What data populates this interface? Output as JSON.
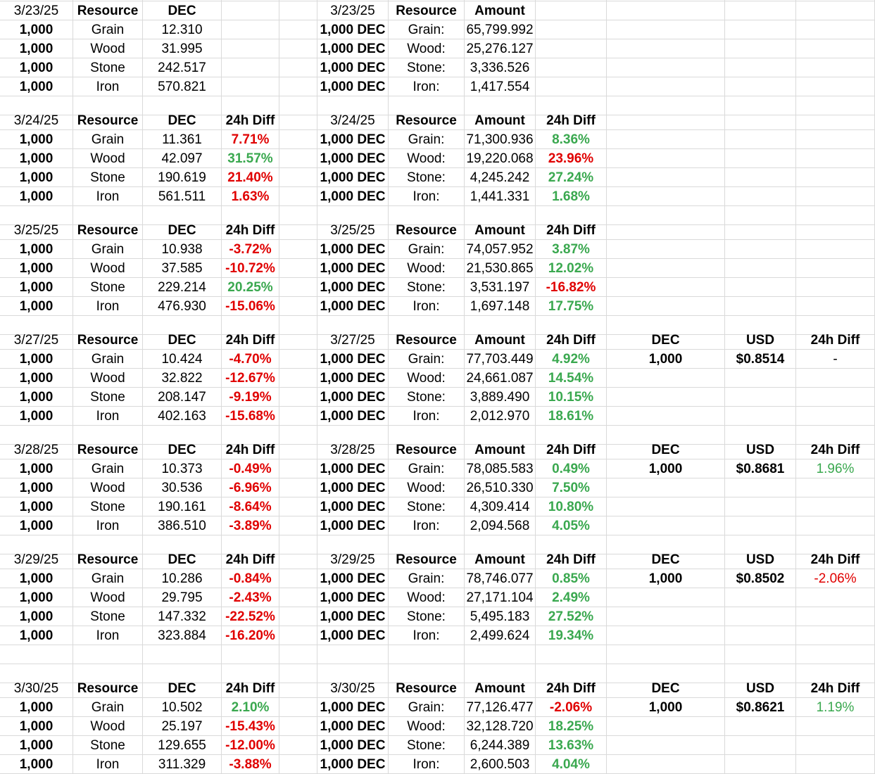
{
  "blocks": [
    {
      "date": "3/23/25",
      "left_headers": [
        "Resource",
        "DEC",
        ""
      ],
      "right_headers": [
        "Resource",
        "Amount",
        ""
      ],
      "rows": [
        {
          "qty": "1,000",
          "res": "Grain",
          "dec": "12.310",
          "diff": "",
          "dir": "",
          "rqty": "1,000 DEC",
          "rres": "Grain:",
          "amt": "65,799.992",
          "rdiff": "",
          "rdir": ""
        },
        {
          "qty": "1,000",
          "res": "Wood",
          "dec": "31.995",
          "diff": "",
          "dir": "",
          "rqty": "1,000 DEC",
          "rres": "Wood:",
          "amt": "25,276.127",
          "rdiff": "",
          "rdir": ""
        },
        {
          "qty": "1,000",
          "res": "Stone",
          "dec": "242.517",
          "diff": "",
          "dir": "",
          "rqty": "1,000 DEC",
          "rres": "Stone:",
          "amt": "3,336.526",
          "rdiff": "",
          "rdir": ""
        },
        {
          "qty": "1,000",
          "res": "Iron",
          "dec": "570.821",
          "diff": "",
          "dir": "",
          "rqty": "1,000 DEC",
          "rres": "Iron:",
          "amt": "1,417.554",
          "rdiff": "",
          "rdir": ""
        }
      ]
    },
    {
      "date": "3/24/25",
      "left_headers": [
        "Resource",
        "DEC",
        "24h Diff"
      ],
      "right_headers": [
        "Resource",
        "Amount",
        "24h Diff"
      ],
      "rows": [
        {
          "qty": "1,000",
          "res": "Grain",
          "dec": "11.361",
          "diff": "7.71%",
          "dir": "neg",
          "rqty": "1,000 DEC",
          "rres": "Grain:",
          "amt": "71,300.936",
          "rdiff": "8.36%",
          "rdir": "pos"
        },
        {
          "qty": "1,000",
          "res": "Wood",
          "dec": "42.097",
          "diff": "31.57%",
          "dir": "pos",
          "rqty": "1,000 DEC",
          "rres": "Wood:",
          "amt": "19,220.068",
          "rdiff": "23.96%",
          "rdir": "neg"
        },
        {
          "qty": "1,000",
          "res": "Stone",
          "dec": "190.619",
          "diff": "21.40%",
          "dir": "neg",
          "rqty": "1,000 DEC",
          "rres": "Stone:",
          "amt": "4,245.242",
          "rdiff": "27.24%",
          "rdir": "pos"
        },
        {
          "qty": "1,000",
          "res": "Iron",
          "dec": "561.511",
          "diff": "1.63%",
          "dir": "neg",
          "rqty": "1,000 DEC",
          "rres": "Iron:",
          "amt": "1,441.331",
          "rdiff": "1.68%",
          "rdir": "pos"
        }
      ]
    },
    {
      "date": "3/25/25",
      "left_headers": [
        "Resource",
        "DEC",
        "24h Diff"
      ],
      "right_headers": [
        "Resource",
        "Amount",
        "24h Diff"
      ],
      "rows": [
        {
          "qty": "1,000",
          "res": "Grain",
          "dec": "10.938",
          "diff": "-3.72%",
          "dir": "neg",
          "rqty": "1,000 DEC",
          "rres": "Grain:",
          "amt": "74,057.952",
          "rdiff": "3.87%",
          "rdir": "pos"
        },
        {
          "qty": "1,000",
          "res": "Wood",
          "dec": "37.585",
          "diff": "-10.72%",
          "dir": "neg",
          "rqty": "1,000 DEC",
          "rres": "Wood:",
          "amt": "21,530.865",
          "rdiff": "12.02%",
          "rdir": "pos"
        },
        {
          "qty": "1,000",
          "res": "Stone",
          "dec": "229.214",
          "diff": "20.25%",
          "dir": "pos",
          "rqty": "1,000 DEC",
          "rres": "Stone:",
          "amt": "3,531.197",
          "rdiff": "-16.82%",
          "rdir": "neg"
        },
        {
          "qty": "1,000",
          "res": "Iron",
          "dec": "476.930",
          "diff": "-15.06%",
          "dir": "neg",
          "rqty": "1,000 DEC",
          "rres": "Iron:",
          "amt": "1,697.148",
          "rdiff": "17.75%",
          "rdir": "pos"
        }
      ]
    },
    {
      "date": "3/27/25",
      "left_headers": [
        "Resource",
        "DEC",
        "24h Diff"
      ],
      "right_headers": [
        "Resource",
        "Amount",
        "24h Diff"
      ],
      "usd": {
        "headers": [
          "DEC",
          "USD",
          "24h Diff"
        ],
        "qty": "1,000",
        "price": "$0.8514",
        "diff": "-",
        "dir": ""
      },
      "rows": [
        {
          "qty": "1,000",
          "res": "Grain",
          "dec": "10.424",
          "diff": "-4.70%",
          "dir": "neg",
          "rqty": "1,000 DEC",
          "rres": "Grain:",
          "amt": "77,703.449",
          "rdiff": "4.92%",
          "rdir": "pos"
        },
        {
          "qty": "1,000",
          "res": "Wood",
          "dec": "32.822",
          "diff": "-12.67%",
          "dir": "neg",
          "rqty": "1,000 DEC",
          "rres": "Wood:",
          "amt": "24,661.087",
          "rdiff": "14.54%",
          "rdir": "pos"
        },
        {
          "qty": "1,000",
          "res": "Stone",
          "dec": "208.147",
          "diff": "-9.19%",
          "dir": "neg",
          "rqty": "1,000 DEC",
          "rres": "Stone:",
          "amt": "3,889.490",
          "rdiff": "10.15%",
          "rdir": "pos"
        },
        {
          "qty": "1,000",
          "res": "Iron",
          "dec": "402.163",
          "diff": "-15.68%",
          "dir": "neg",
          "rqty": "1,000 DEC",
          "rres": "Iron:",
          "amt": "2,012.970",
          "rdiff": "18.61%",
          "rdir": "pos"
        }
      ]
    },
    {
      "date": "3/28/25",
      "left_headers": [
        "Resource",
        "DEC",
        "24h Diff"
      ],
      "right_headers": [
        "Resource",
        "Amount",
        "24h Diff"
      ],
      "usd": {
        "headers": [
          "DEC",
          "USD",
          "24h Diff"
        ],
        "qty": "1,000",
        "price": "$0.8681",
        "diff": "1.96%",
        "dir": "usdpos"
      },
      "rows": [
        {
          "qty": "1,000",
          "res": "Grain",
          "dec": "10.373",
          "diff": "-0.49%",
          "dir": "neg",
          "rqty": "1,000 DEC",
          "rres": "Grain:",
          "amt": "78,085.583",
          "rdiff": "0.49%",
          "rdir": "pos"
        },
        {
          "qty": "1,000",
          "res": "Wood",
          "dec": "30.536",
          "diff": "-6.96%",
          "dir": "neg",
          "rqty": "1,000 DEC",
          "rres": "Wood:",
          "amt": "26,510.330",
          "rdiff": "7.50%",
          "rdir": "pos"
        },
        {
          "qty": "1,000",
          "res": "Stone",
          "dec": "190.161",
          "diff": "-8.64%",
          "dir": "neg",
          "rqty": "1,000 DEC",
          "rres": "Stone:",
          "amt": "4,309.414",
          "rdiff": "10.80%",
          "rdir": "pos"
        },
        {
          "qty": "1,000",
          "res": "Iron",
          "dec": "386.510",
          "diff": "-3.89%",
          "dir": "neg",
          "rqty": "1,000 DEC",
          "rres": "Iron:",
          "amt": "2,094.568",
          "rdiff": "4.05%",
          "rdir": "pos"
        }
      ]
    },
    {
      "date": "3/29/25",
      "left_headers": [
        "Resource",
        "DEC",
        "24h Diff"
      ],
      "right_headers": [
        "Resource",
        "Amount",
        "24h Diff"
      ],
      "usd": {
        "headers": [
          "DEC",
          "USD",
          "24h Diff"
        ],
        "qty": "1,000",
        "price": "$0.8502",
        "diff": "-2.06%",
        "dir": "usdneg"
      },
      "rows": [
        {
          "qty": "1,000",
          "res": "Grain",
          "dec": "10.286",
          "diff": "-0.84%",
          "dir": "neg",
          "rqty": "1,000 DEC",
          "rres": "Grain:",
          "amt": "78,746.077",
          "rdiff": "0.85%",
          "rdir": "pos"
        },
        {
          "qty": "1,000",
          "res": "Wood",
          "dec": "29.795",
          "diff": "-2.43%",
          "dir": "neg",
          "rqty": "1,000 DEC",
          "rres": "Wood:",
          "amt": "27,171.104",
          "rdiff": "2.49%",
          "rdir": "pos"
        },
        {
          "qty": "1,000",
          "res": "Stone",
          "dec": "147.332",
          "diff": "-22.52%",
          "dir": "neg",
          "rqty": "1,000 DEC",
          "rres": "Stone:",
          "amt": "5,495.183",
          "rdiff": "27.52%",
          "rdir": "pos"
        },
        {
          "qty": "1,000",
          "res": "Iron",
          "dec": "323.884",
          "diff": "-16.20%",
          "dir": "neg",
          "rqty": "1,000 DEC",
          "rres": "Iron:",
          "amt": "2,499.624",
          "rdiff": "19.34%",
          "rdir": "pos"
        }
      ]
    },
    {
      "date": "3/30/25",
      "left_headers": [
        "Resource",
        "DEC",
        "24h Diff"
      ],
      "right_headers": [
        "Resource",
        "Amount",
        "24h Diff"
      ],
      "usd": {
        "headers": [
          "DEC",
          "USD",
          "24h Diff"
        ],
        "qty": "1,000",
        "price": "$0.8621",
        "diff": "1.19%",
        "dir": "usdpos"
      },
      "rows": [
        {
          "qty": "1,000",
          "res": "Grain",
          "dec": "10.502",
          "diff": "2.10%",
          "dir": "pos",
          "rqty": "1,000 DEC",
          "rres": "Grain:",
          "amt": "77,126.477",
          "rdiff": "-2.06%",
          "rdir": "neg"
        },
        {
          "qty": "1,000",
          "res": "Wood",
          "dec": "25.197",
          "diff": "-15.43%",
          "dir": "neg",
          "rqty": "1,000 DEC",
          "rres": "Wood:",
          "amt": "32,128.720",
          "rdiff": "18.25%",
          "rdir": "pos"
        },
        {
          "qty": "1,000",
          "res": "Stone",
          "dec": "129.655",
          "diff": "-12.00%",
          "dir": "neg",
          "rqty": "1,000 DEC",
          "rres": "Stone:",
          "amt": "6,244.389",
          "rdiff": "13.63%",
          "rdir": "pos"
        },
        {
          "qty": "1,000",
          "res": "Iron",
          "dec": "311.329",
          "diff": "-3.88%",
          "dir": "neg",
          "rqty": "1,000 DEC",
          "rres": "Iron:",
          "amt": "2,600.503",
          "rdiff": "4.04%",
          "rdir": "pos"
        }
      ]
    }
  ]
}
